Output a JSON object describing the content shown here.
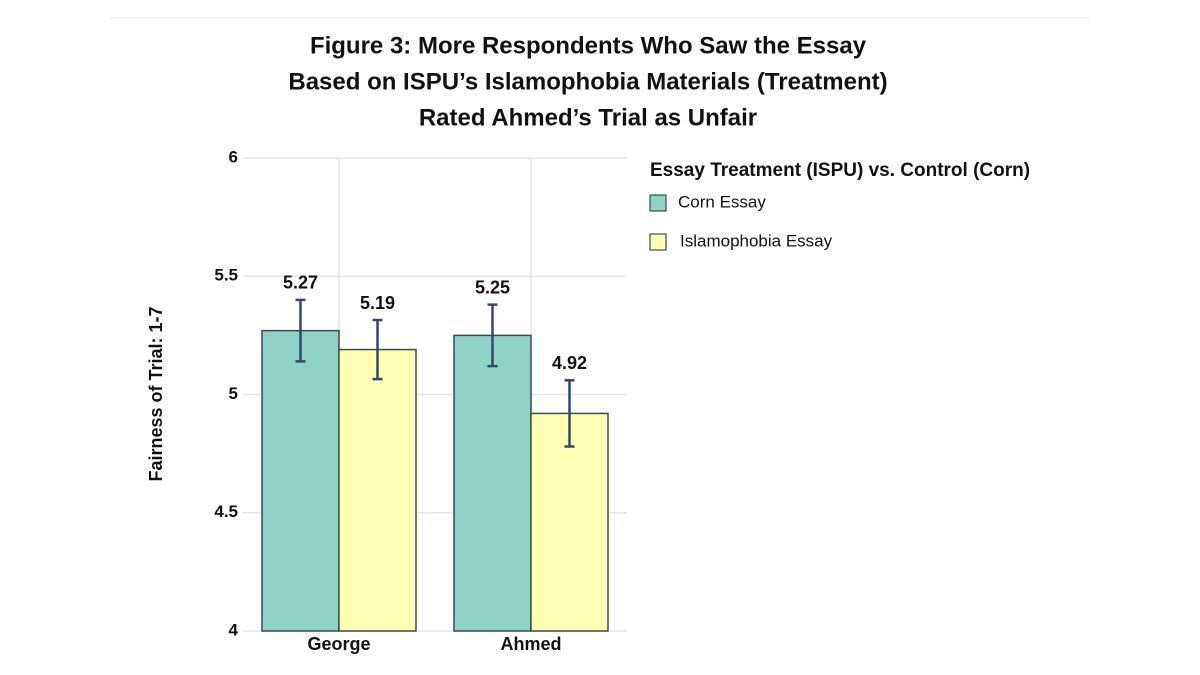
{
  "chart_data": {
    "type": "bar",
    "title": [
      "Figure 3: More Respondents Who Saw the Essay",
      "Based on ISPU’s Islamophobia Materials (Treatment)",
      "Rated Ahmed’s Trial as Unfair"
    ],
    "y_label": "Fairness of Trial: 1-7",
    "legend_title": "Essay Treatment (ISPU) vs. Control (Corn)",
    "categories": [
      "George",
      "Ahmed"
    ],
    "series": [
      {
        "name": "Corn Essay",
        "color": "#8fd3c6",
        "values": [
          5.27,
          5.25
        ],
        "errors": [
          0.13,
          0.13
        ]
      },
      {
        "name": "Islamophobia Essay",
        "color": "#ffffb3",
        "values": [
          5.19,
          4.92
        ],
        "errors": [
          0.125,
          0.14
        ]
      }
    ],
    "ylim": [
      4,
      6
    ],
    "yticks": [
      4,
      4.5,
      5,
      5.5,
      6
    ],
    "grid": true,
    "legend": "right"
  }
}
